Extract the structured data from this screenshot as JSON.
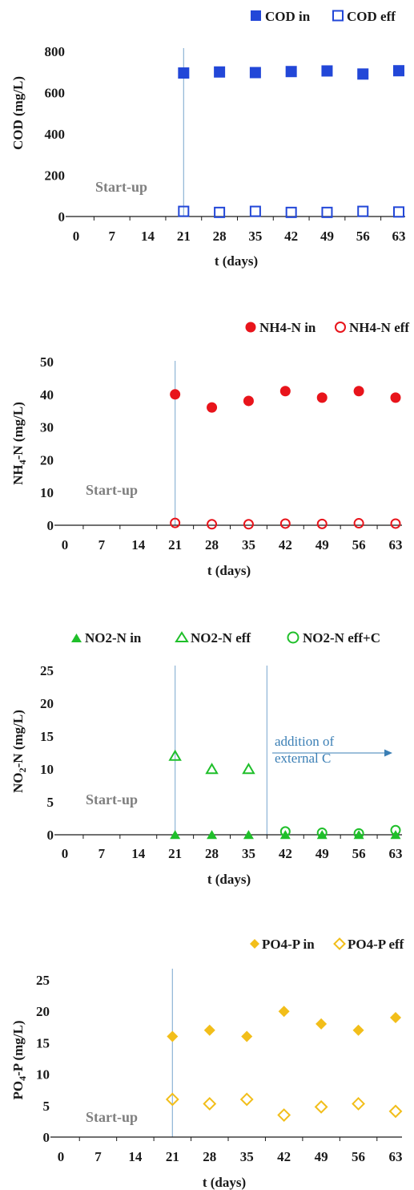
{
  "colors": {
    "cod": "#2247d8",
    "nh4": "#e8141b",
    "no2": "#1fbf2a",
    "po4": "#f2be1a",
    "vline": "#8eb4d6",
    "axis": "#1a1a1a",
    "annot": "#3b7fb5"
  },
  "chart_data": [
    {
      "type": "scatter",
      "ylabel": "COD (mg/L)",
      "xlabel": "t (days)",
      "ylim": [
        0,
        800
      ],
      "yticks": [
        "0",
        "200",
        "400",
        "600",
        "800"
      ],
      "xticks": [
        "0",
        "7",
        "14",
        "21",
        "28",
        "35",
        "42",
        "49",
        "56",
        "63"
      ],
      "xlim": [
        0,
        63
      ],
      "startup_label": "Start-up",
      "vlines": [
        21
      ],
      "series": [
        {
          "name": "COD in",
          "marker": "square-filled",
          "x": [
            21,
            28,
            35,
            42,
            49,
            56,
            63
          ],
          "y": [
            695,
            700,
            697,
            702,
            705,
            690,
            706
          ]
        },
        {
          "name": "COD eff",
          "marker": "square-open",
          "x": [
            21,
            28,
            35,
            42,
            49,
            56,
            63
          ],
          "y": [
            25,
            20,
            25,
            20,
            20,
            25,
            22
          ]
        }
      ]
    },
    {
      "type": "scatter",
      "ylabel": "NH4-N (mg/L)",
      "xlabel": "t (days)",
      "ylim": [
        0,
        50
      ],
      "yticks": [
        "0",
        "10",
        "20",
        "30",
        "40",
        "50"
      ],
      "xticks": [
        "0",
        "7",
        "14",
        "21",
        "28",
        "35",
        "42",
        "49",
        "56",
        "63"
      ],
      "xlim": [
        0,
        63
      ],
      "startup_label": "Start-up",
      "vlines": [
        21
      ],
      "series": [
        {
          "name": "NH4-N in",
          "marker": "circle-filled",
          "x": [
            21,
            28,
            35,
            42,
            49,
            56,
            63
          ],
          "y": [
            40,
            36,
            38,
            41,
            39,
            41,
            39
          ]
        },
        {
          "name": "NH4-N eff",
          "marker": "circle-open",
          "x": [
            21,
            28,
            35,
            42,
            49,
            56,
            63
          ],
          "y": [
            0.7,
            0.3,
            0.3,
            0.5,
            0.4,
            0.6,
            0.5
          ]
        }
      ]
    },
    {
      "type": "scatter",
      "ylabel": "NO2-N (mg/L)",
      "xlabel": "t (days)",
      "ylim": [
        0,
        25
      ],
      "yticks": [
        "0",
        "5",
        "10",
        "15",
        "20",
        "25"
      ],
      "xticks": [
        "0",
        "7",
        "14",
        "21",
        "28",
        "35",
        "42",
        "49",
        "56",
        "63"
      ],
      "xlim": [
        0,
        63
      ],
      "startup_label": "Start-up",
      "vlines": [
        21,
        38.5
      ],
      "annotation": {
        "line1": "addition of",
        "line2": "external C"
      },
      "series": [
        {
          "name": "NO2-N in",
          "marker": "triangle-filled",
          "x": [
            21,
            28,
            35,
            42,
            49,
            56,
            63
          ],
          "y": [
            0,
            0,
            0,
            0,
            0,
            0,
            0
          ]
        },
        {
          "name": "NO2-N eff",
          "marker": "triangle-open",
          "x": [
            21,
            28,
            35
          ],
          "y": [
            12,
            10,
            10
          ]
        },
        {
          "name": "NO2-N eff+C",
          "marker": "circle-open",
          "x": [
            42,
            49,
            56,
            63
          ],
          "y": [
            0.5,
            0.3,
            0.2,
            0.7
          ]
        }
      ]
    },
    {
      "type": "scatter",
      "ylabel": "PO4-P (mg/L)",
      "xlabel": "t (days)",
      "ylim": [
        0,
        25
      ],
      "yticks": [
        "0",
        "5",
        "10",
        "15",
        "20",
        "25"
      ],
      "xticks": [
        "0",
        "7",
        "14",
        "21",
        "28",
        "35",
        "42",
        "49",
        "56",
        "63"
      ],
      "xlim": [
        0,
        63
      ],
      "startup_label": "Start-up",
      "vlines": [
        21
      ],
      "series": [
        {
          "name": "PO4-P in",
          "marker": "diamond-filled",
          "x": [
            21,
            28,
            35,
            42,
            49,
            56,
            63
          ],
          "y": [
            16,
            17,
            16,
            20,
            18,
            17,
            19
          ]
        },
        {
          "name": "PO4-P eff",
          "marker": "diamond-open",
          "x": [
            21,
            28,
            35,
            42,
            49,
            56,
            63
          ],
          "y": [
            6,
            5.3,
            6,
            3.5,
            4.8,
            5.3,
            4.1
          ]
        }
      ]
    }
  ]
}
